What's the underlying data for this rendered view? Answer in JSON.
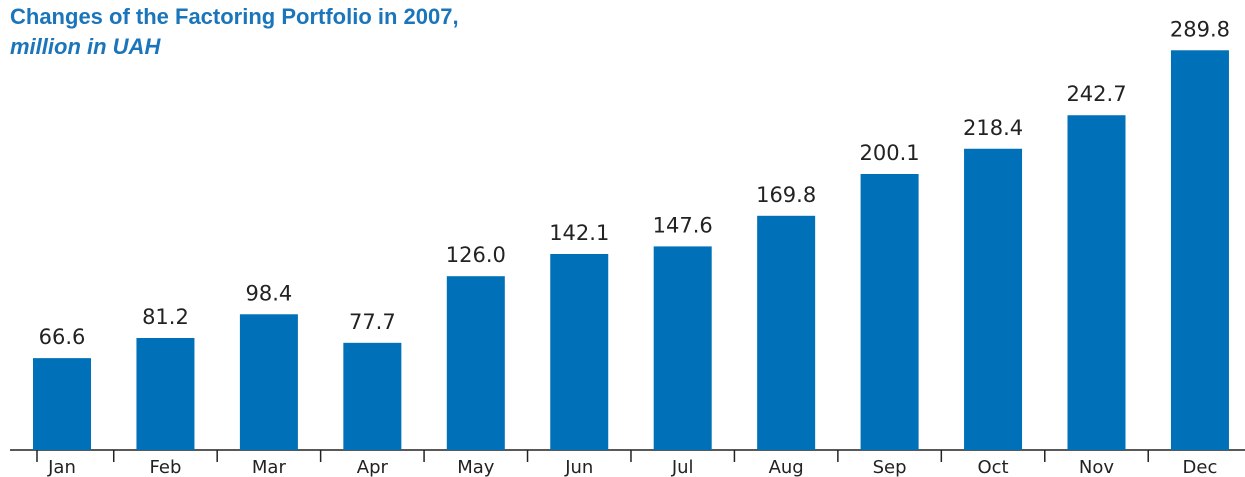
{
  "chart_data": {
    "type": "bar",
    "title": "Changes of the Factoring Portfolio in 2007,",
    "subtitle": "million in UAH",
    "categories": [
      "Jan",
      "Feb",
      "Mar",
      "Apr",
      "May",
      "Jun",
      "Jul",
      "Aug",
      "Sep",
      "Oct",
      "Nov",
      "Dec"
    ],
    "values": [
      66.6,
      81.2,
      98.4,
      77.7,
      126.0,
      142.1,
      147.6,
      169.8,
      200.1,
      218.4,
      242.7,
      289.8
    ],
    "value_labels": [
      "66.6",
      "81.2",
      "98.4",
      "77.7",
      "126.0",
      "142.1",
      "147.6",
      "169.8",
      "200.1",
      "218.4",
      "242.7",
      "289.8"
    ],
    "color": "#0070b8",
    "ylim": [
      0,
      290
    ]
  }
}
